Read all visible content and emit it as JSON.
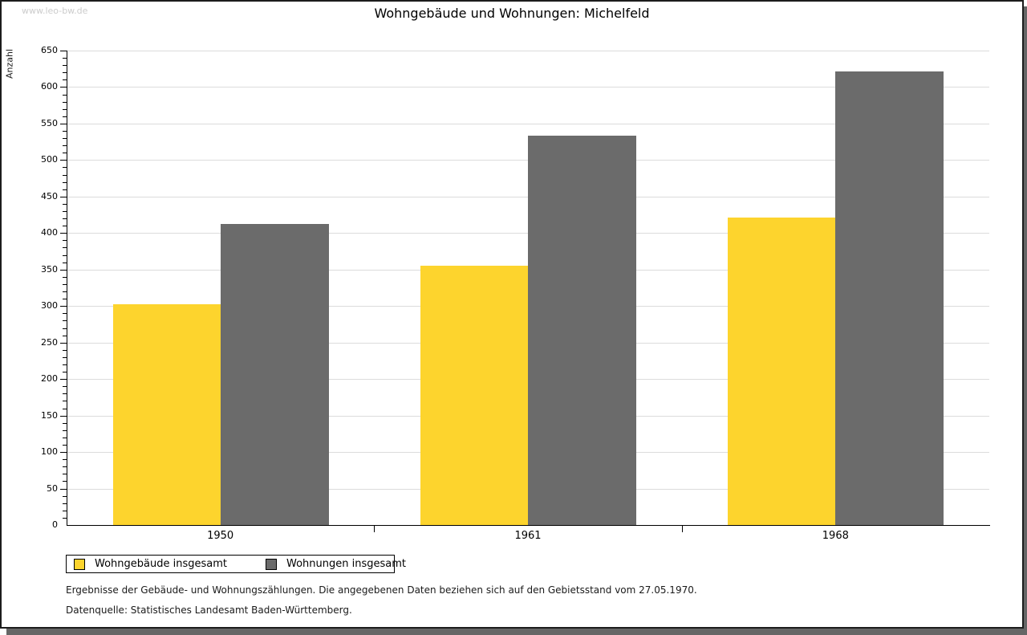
{
  "watermark": "www.leo-bw.de",
  "title": "Wohngebäude und Wohnungen: Michelfeld",
  "footer": {
    "note1": "Ergebnisse der Gebäude- und Wohnungszählungen. Die angegebenen Daten beziehen sich auf den Gebietsstand vom 27.05.1970.",
    "note2": "Datenquelle: Statistisches Landesamt Baden-Württemberg."
  },
  "colors": {
    "bar_yellow": "#FDD42D",
    "bar_gray": "#6B6B6B",
    "gridline": "#DCDCDC",
    "axis": "#000000",
    "watermark": "#CCCCCC"
  },
  "chart_data": {
    "type": "bar",
    "title": "Wohngebäude und Wohnungen: Michelfeld",
    "categories": [
      "1950",
      "1961",
      "1968"
    ],
    "series": [
      {
        "name": "Wohngebäude insgesamt",
        "color": "#FDD42D",
        "values": [
          303,
          355,
          421
        ]
      },
      {
        "name": "Wohnungen insgesamt",
        "color": "#6B6B6B",
        "values": [
          412,
          533,
          621
        ]
      }
    ],
    "xlabel": "",
    "ylabel": "Anzahl",
    "ylim": [
      0,
      650
    ],
    "ytick_step": 50,
    "minor_tick_step": 10,
    "grid": true,
    "legend_position": "bottom-left"
  }
}
